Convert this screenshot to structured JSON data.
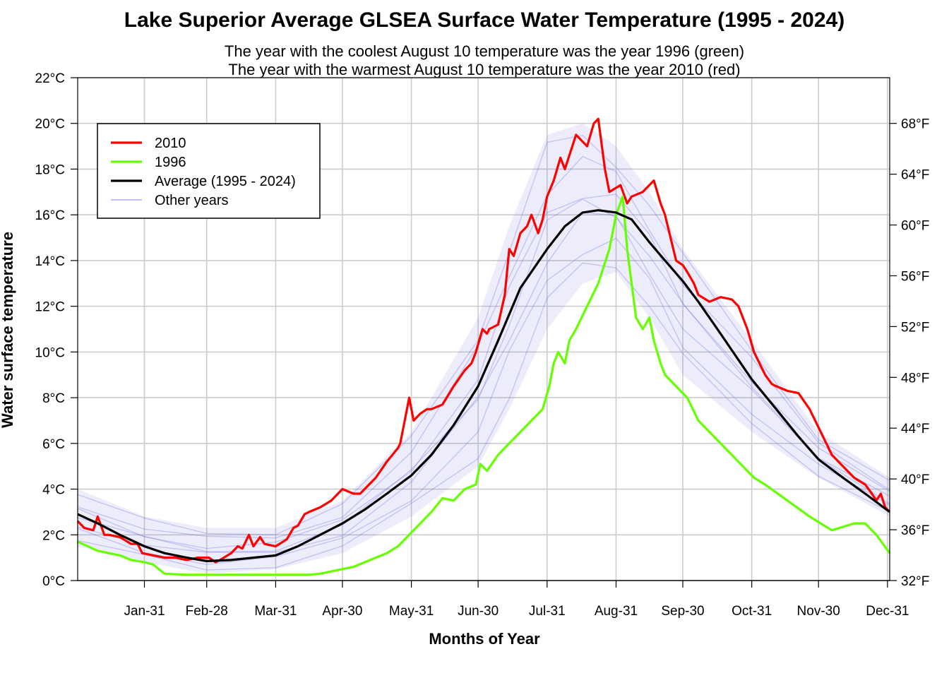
{
  "chart_data": {
    "type": "line",
    "title": "Lake Superior Average GLSEA Surface Water Temperature (1995 - 2024)",
    "subtitle_lines": [
      "The year with the coolest August 10 temperature was the year 1996 (green)",
      "The year with the warmest August 10 temperature was the year 2010 (red)"
    ],
    "xlabel": "Months of Year",
    "ylabel": "Water surface temperature",
    "x_unit": "day of year",
    "xlim": [
      1,
      366
    ],
    "ylim": [
      0,
      22
    ],
    "x_ticks": [
      {
        "day": 31,
        "label": "Jan-31"
      },
      {
        "day": 59,
        "label": "Feb-28"
      },
      {
        "day": 90,
        "label": "Mar-31"
      },
      {
        "day": 120,
        "label": "Apr-30"
      },
      {
        "day": 151,
        "label": "May-31"
      },
      {
        "day": 181,
        "label": "Jun-30"
      },
      {
        "day": 212,
        "label": "Jul-31"
      },
      {
        "day": 243,
        "label": "Aug-31"
      },
      {
        "day": 273,
        "label": "Sep-30"
      },
      {
        "day": 304,
        "label": "Oct-31"
      },
      {
        "day": 334,
        "label": "Nov-30"
      },
      {
        "day": 365,
        "label": "Dec-31"
      }
    ],
    "y_ticks_left": [
      {
        "value": 0,
        "label": "0°C"
      },
      {
        "value": 2,
        "label": "2°C"
      },
      {
        "value": 4,
        "label": "4°C"
      },
      {
        "value": 6,
        "label": "6°C"
      },
      {
        "value": 8,
        "label": "8°C"
      },
      {
        "value": 10,
        "label": "10°C"
      },
      {
        "value": 12,
        "label": "12°C"
      },
      {
        "value": 14,
        "label": "14°C"
      },
      {
        "value": 16,
        "label": "16°C"
      },
      {
        "value": 18,
        "label": "18°C"
      },
      {
        "value": 20,
        "label": "20°C"
      },
      {
        "value": 22,
        "label": "22°C"
      }
    ],
    "y_ticks_right": [
      {
        "fahrenheit": 32,
        "label": "32°F"
      },
      {
        "fahrenheit": 36,
        "label": "36°F"
      },
      {
        "fahrenheit": 40,
        "label": "40°F"
      },
      {
        "fahrenheit": 44,
        "label": "44°F"
      },
      {
        "fahrenheit": 48,
        "label": "48°F"
      },
      {
        "fahrenheit": 52,
        "label": "52°F"
      },
      {
        "fahrenheit": 56,
        "label": "56°F"
      },
      {
        "fahrenheit": 60,
        "label": "60°F"
      },
      {
        "fahrenheit": 64,
        "label": "64°F"
      },
      {
        "fahrenheit": 68,
        "label": "68°F"
      }
    ],
    "grid": true,
    "legend_position": "top-left",
    "legend": [
      {
        "label": "2010",
        "color": "#ff0000"
      },
      {
        "label": "1996",
        "color": "#66ff00"
      },
      {
        "label": "Average (1995 - 2024)",
        "color": "#000000"
      },
      {
        "label": "Other years",
        "color": "#aaaaee"
      }
    ],
    "series": [
      {
        "name": "Other years",
        "color": "#6666dd",
        "is_band": true,
        "x": [
          1,
          31,
          59,
          90,
          120,
          151,
          181,
          195,
          212,
          228,
          243,
          258,
          273,
          304,
          334,
          366
        ],
        "low": [
          1.5,
          0.8,
          0.3,
          0.5,
          1.2,
          2.8,
          5.0,
          7.5,
          11.0,
          13.0,
          13.5,
          11.5,
          9.0,
          6.5,
          4.5,
          2.8
        ],
        "high": [
          4.0,
          2.8,
          2.3,
          2.3,
          3.5,
          6.5,
          11.5,
          15.5,
          19.5,
          20.0,
          19.0,
          17.0,
          14.5,
          10.5,
          6.5,
          4.5
        ]
      },
      {
        "name": "2010",
        "color": "#ff0000",
        "x": [
          1,
          4,
          8,
          10,
          13,
          15,
          20,
          25,
          28,
          30,
          35,
          40,
          45,
          50,
          55,
          60,
          63,
          65,
          70,
          73,
          75,
          78,
          80,
          83,
          85,
          90,
          95,
          98,
          100,
          103,
          105,
          110,
          115,
          120,
          125,
          128,
          130,
          135,
          140,
          145,
          146,
          148,
          150,
          152,
          155,
          158,
          160,
          165,
          170,
          175,
          178,
          180,
          183,
          185,
          186,
          190,
          193,
          195,
          197,
          200,
          203,
          205,
          208,
          210,
          212,
          215,
          218,
          220,
          225,
          228,
          230,
          233,
          235,
          238,
          240,
          245,
          248,
          250,
          255,
          260,
          263,
          265,
          270,
          273,
          275,
          278,
          280,
          285,
          290,
          295,
          298,
          300,
          302,
          305,
          310,
          313,
          315,
          320,
          325,
          330,
          335,
          340,
          345,
          350,
          355,
          358,
          360,
          362,
          364,
          366
        ],
        "y": [
          2.6,
          2.3,
          2.2,
          2.8,
          2.0,
          2.0,
          1.9,
          1.6,
          1.6,
          1.2,
          1.1,
          1.0,
          1.0,
          0.9,
          1.0,
          1.0,
          0.8,
          0.9,
          1.2,
          1.5,
          1.4,
          2.0,
          1.5,
          1.9,
          1.6,
          1.5,
          1.8,
          2.3,
          2.4,
          2.9,
          3.0,
          3.2,
          3.5,
          4.0,
          3.8,
          3.8,
          4.0,
          4.5,
          5.2,
          5.8,
          6.0,
          7.0,
          8.0,
          7.0,
          7.3,
          7.5,
          7.5,
          7.7,
          8.5,
          9.2,
          9.5,
          10.0,
          11.0,
          10.8,
          11.0,
          11.2,
          12.5,
          14.5,
          14.2,
          15.2,
          15.5,
          16.0,
          15.2,
          15.8,
          16.8,
          17.5,
          18.5,
          18.0,
          19.5,
          19.2,
          19.0,
          20.0,
          20.2,
          18.0,
          17.0,
          17.3,
          16.5,
          16.8,
          17.0,
          17.5,
          16.5,
          16.0,
          14.0,
          13.8,
          13.5,
          13.0,
          12.5,
          12.2,
          12.4,
          12.3,
          12.0,
          11.5,
          11.0,
          10.0,
          9.0,
          8.6,
          8.5,
          8.3,
          8.2,
          7.5,
          6.5,
          5.5,
          5.0,
          4.5,
          4.2,
          3.8,
          3.5,
          3.8,
          3.2,
          3.0
        ],
        "line_width": 3.2
      },
      {
        "name": "1996",
        "color": "#66ff00",
        "x": [
          1,
          10,
          20,
          25,
          31,
          35,
          40,
          50,
          60,
          70,
          80,
          90,
          100,
          105,
          110,
          115,
          120,
          125,
          130,
          135,
          140,
          145,
          150,
          155,
          160,
          165,
          170,
          175,
          180,
          182,
          185,
          190,
          195,
          200,
          205,
          210,
          213,
          215,
          217,
          220,
          222,
          225,
          230,
          235,
          240,
          243,
          246,
          248,
          250,
          252,
          255,
          258,
          260,
          263,
          265,
          270,
          275,
          280,
          285,
          290,
          295,
          300,
          305,
          310,
          320,
          330,
          340,
          350,
          355,
          360,
          366
        ],
        "y": [
          1.7,
          1.3,
          1.1,
          0.9,
          0.8,
          0.7,
          0.3,
          0.25,
          0.25,
          0.25,
          0.25,
          0.25,
          0.25,
          0.25,
          0.3,
          0.4,
          0.5,
          0.6,
          0.8,
          1.0,
          1.2,
          1.5,
          2.0,
          2.5,
          3.0,
          3.6,
          3.5,
          4.0,
          4.2,
          5.1,
          4.8,
          5.5,
          6.0,
          6.5,
          7.0,
          7.5,
          8.5,
          9.5,
          10.0,
          9.5,
          10.5,
          11.0,
          12.0,
          13.0,
          14.5,
          16.0,
          16.8,
          14.5,
          13.0,
          11.5,
          11.0,
          11.5,
          10.5,
          9.5,
          9.0,
          8.5,
          8.0,
          7.0,
          6.5,
          6.0,
          5.5,
          5.0,
          4.5,
          4.2,
          3.5,
          2.8,
          2.2,
          2.5,
          2.5,
          2.0,
          1.2
        ],
        "line_width": 3.2
      },
      {
        "name": "Average (1995 - 2024)",
        "color": "#000000",
        "x": [
          1,
          10,
          20,
          31,
          40,
          50,
          59,
          70,
          80,
          90,
          100,
          110,
          120,
          130,
          140,
          151,
          160,
          170,
          181,
          190,
          200,
          212,
          220,
          228,
          235,
          243,
          250,
          258,
          265,
          273,
          280,
          290,
          304,
          315,
          325,
          334,
          345,
          355,
          366
        ],
        "y": [
          2.9,
          2.5,
          2.0,
          1.5,
          1.2,
          1.0,
          0.85,
          0.9,
          1.0,
          1.1,
          1.5,
          2.0,
          2.5,
          3.1,
          3.8,
          4.6,
          5.5,
          6.8,
          8.5,
          10.5,
          12.8,
          14.5,
          15.5,
          16.1,
          16.2,
          16.1,
          15.8,
          14.8,
          14.0,
          13.1,
          12.2,
          10.8,
          8.8,
          7.5,
          6.3,
          5.3,
          4.5,
          3.8,
          3.0
        ],
        "line_width": 3.2
      }
    ]
  }
}
